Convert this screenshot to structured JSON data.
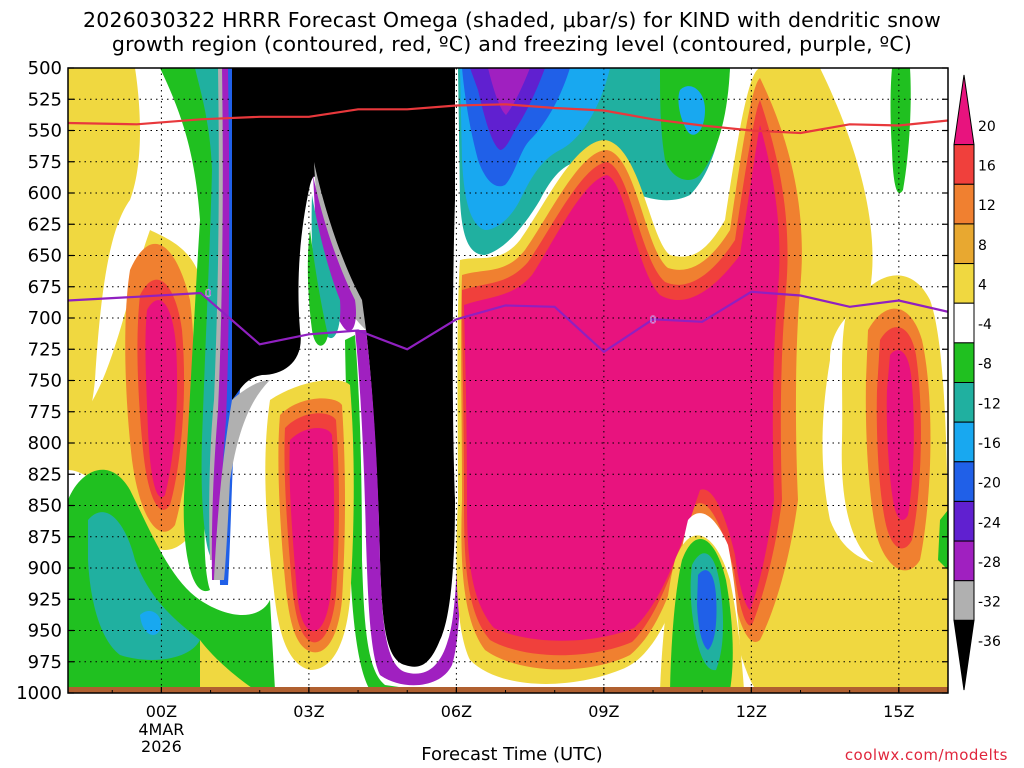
{
  "header": {
    "title_line_1": "2026030322 HRRR Forecast Omega (shaded, μbar/s) for KIND with dendritic snow",
    "title_line_2": "growth region (contoured, red, ºC) and freezing level (contoured, purple, ºC)"
  },
  "footer": {
    "credit": "coolwx.com/modelts"
  },
  "chart_data": {
    "type": "heatmap",
    "title": "2026030322 HRRR Forecast Omega (shaded, μbar/s) for KIND with dendritic snow growth region (contoured, red, ºC) and freezing level (contoured, purple, ºC)",
    "xlabel": "Forecast Time (UTC)",
    "ylabel": "",
    "x_range_hours_from_00Z": [
      -1.9,
      16.0
    ],
    "y_range": [
      1000,
      500
    ],
    "y_scale": "reversed",
    "y_ticks": [
      "500",
      "525",
      "550",
      "575",
      "600",
      "625",
      "650",
      "675",
      "700",
      "725",
      "750",
      "775",
      "800",
      "825",
      "850",
      "875",
      "900",
      "925",
      "950",
      "975",
      "1000"
    ],
    "x_ticks": [
      {
        "label": "00Z",
        "sub": [
          "4MAR",
          "2026"
        ],
        "hour": 0
      },
      {
        "label": "03Z",
        "hour": 3
      },
      {
        "label": "06Z",
        "hour": 6
      },
      {
        "label": "09Z",
        "hour": 9
      },
      {
        "label": "12Z",
        "hour": 12
      },
      {
        "label": "15Z",
        "hour": 15
      }
    ],
    "grid": true,
    "colorbar": {
      "labels": [
        "20",
        "16",
        "12",
        "8",
        "4",
        "-4",
        "-8",
        "-12",
        "-16",
        "-20",
        "-24",
        "-28",
        "-32",
        "-36"
      ],
      "colors": [
        "#e8137e",
        "#f0403c",
        "#f08030",
        "#e8a830",
        "#f0d840",
        "#ffffff",
        "#20c020",
        "#20b0a0",
        "#18a8f0",
        "#2060e8",
        "#6020d0",
        "#a020c0",
        "#b0b0b0",
        "#000000"
      ]
    },
    "series": [
      {
        "name": "dendritic snow growth region",
        "color": "#e8383c",
        "points": [
          [
            -1.9,
            544
          ],
          [
            -0.5,
            545
          ],
          [
            0.8,
            541
          ],
          [
            2.0,
            539
          ],
          [
            3.0,
            539
          ],
          [
            4.0,
            533
          ],
          [
            5.0,
            533
          ],
          [
            6.0,
            530
          ],
          [
            7.0,
            529
          ],
          [
            8.0,
            532
          ],
          [
            9.0,
            534
          ],
          [
            10.0,
            541
          ],
          [
            11.0,
            546
          ],
          [
            12.0,
            550
          ],
          [
            13.0,
            552
          ],
          [
            14.0,
            545
          ],
          [
            15.0,
            546
          ],
          [
            16.0,
            542
          ]
        ]
      },
      {
        "name": "freezing level",
        "color": "#9020c0",
        "points": [
          [
            -1.9,
            686
          ],
          [
            -0.5,
            683
          ],
          [
            0.8,
            680
          ],
          [
            2.0,
            721
          ],
          [
            3.0,
            713
          ],
          [
            4.0,
            710
          ],
          [
            5.0,
            725
          ],
          [
            6.0,
            701
          ],
          [
            7.0,
            690
          ],
          [
            8.0,
            691
          ],
          [
            9.0,
            727
          ],
          [
            10.0,
            701
          ],
          [
            11.0,
            703
          ],
          [
            12.0,
            679
          ],
          [
            13.0,
            682
          ],
          [
            14.0,
            691
          ],
          [
            15.0,
            686
          ],
          [
            16.0,
            695
          ]
        ]
      }
    ],
    "contour_labels": [
      {
        "text": "0",
        "hour": 0.95,
        "pressure": 680,
        "color": "#9020c0"
      },
      {
        "text": "0",
        "hour": 10.0,
        "pressure": 701,
        "color": "#9020c0"
      }
    ],
    "ground_level_pressure": 996
  }
}
